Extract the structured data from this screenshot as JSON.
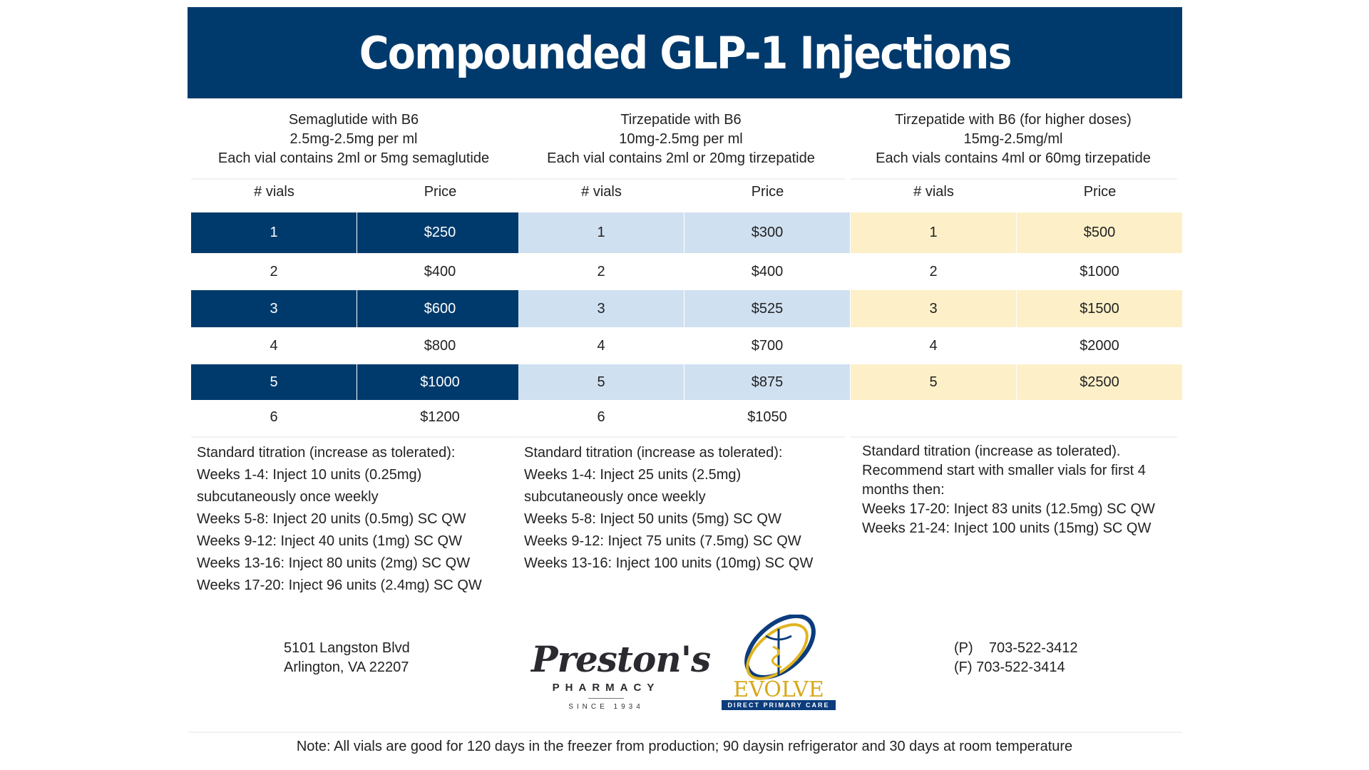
{
  "title": "Compounded GLP-1 Injections",
  "products": [
    {
      "lines": [
        "Semaglutide with B6",
        "2.5mg-2.5mg per ml",
        "Each vial contains 2ml or 5mg semaglutide"
      ],
      "col_vials": "# vials",
      "col_price": "Price",
      "rows": [
        [
          "1",
          "$250"
        ],
        [
          "2",
          "$400"
        ],
        [
          "3",
          "$600"
        ],
        [
          "4",
          "$800"
        ],
        [
          "5",
          "$1000"
        ],
        [
          "6",
          "$1200"
        ]
      ],
      "titration": [
        "Standard titration (increase as tolerated):",
        "Weeks 1-4: Inject 10 units (0.25mg)",
        "subcutaneously once weekly",
        "Weeks 5-8: Inject 20 units (0.5mg) SC QW",
        "Weeks 9-12: Inject 40 units (1mg) SC QW",
        "Weeks 13-16: Inject 80 units (2mg) SC QW",
        "Weeks 17-20: Inject 96 units (2.4mg) SC QW"
      ]
    },
    {
      "lines": [
        "Tirzepatide with B6",
        "10mg-2.5mg per ml",
        "Each vial contains 2ml or 20mg tirzepatide"
      ],
      "col_vials": "# vials",
      "col_price": "Price",
      "rows": [
        [
          "1",
          "$300"
        ],
        [
          "2",
          "$400"
        ],
        [
          "3",
          "$525"
        ],
        [
          "4",
          "$700"
        ],
        [
          "5",
          "$875"
        ],
        [
          "6",
          "$1050"
        ]
      ],
      "titration": [
        "Standard titration (increase as tolerated):",
        "Weeks 1-4: Inject 25 units (2.5mg)",
        "subcutaneously once weekly",
        "Weeks 5-8: Inject 50 units (5mg) SC QW",
        "Weeks 9-12: Inject 75 units (7.5mg) SC QW",
        "Weeks 13-16: Inject 100 units (10mg) SC QW"
      ]
    },
    {
      "lines": [
        "Tirzepatide with B6 (for higher doses)",
        "15mg-2.5mg/ml",
        "Each vials contains 4ml or 60mg tirzepatide"
      ],
      "col_vials": "# vials",
      "col_price": "Price",
      "rows": [
        [
          "1",
          "$500"
        ],
        [
          "2",
          "$1000"
        ],
        [
          "3",
          "$1500"
        ],
        [
          "4",
          "$2000"
        ],
        [
          "5",
          "$2500"
        ]
      ],
      "titration": [
        "Standard titration (increase as tolerated).",
        "Recommend start with smaller vials for first 4",
        "months then:",
        "Weeks 17-20: Inject 83 units (12.5mg) SC QW",
        "Weeks 21-24: Inject 100 units (15mg) SC QW"
      ]
    }
  ],
  "colors": {
    "navy": "#003a6c",
    "light_blue": "#cfe0f1",
    "light_yellow": "#fdf0c8"
  },
  "address": [
    "5101  Langston  Blvd",
    "Arlington, VA 22207"
  ],
  "phone": [
    "(P)    703-522-3412",
    "(F) 703-522-3414"
  ],
  "logos": {
    "prestons": {
      "name": "Preston's",
      "sub": "PHARMACY",
      "since": "SINCE 1934"
    },
    "evolve": {
      "name": "EVOLVE",
      "sub": "DIRECT PRIMARY CARE"
    }
  },
  "note": "Note: All vials are good for 120 days in the freezer from production; 90 daysin refrigerator and 30 days at room temperature"
}
